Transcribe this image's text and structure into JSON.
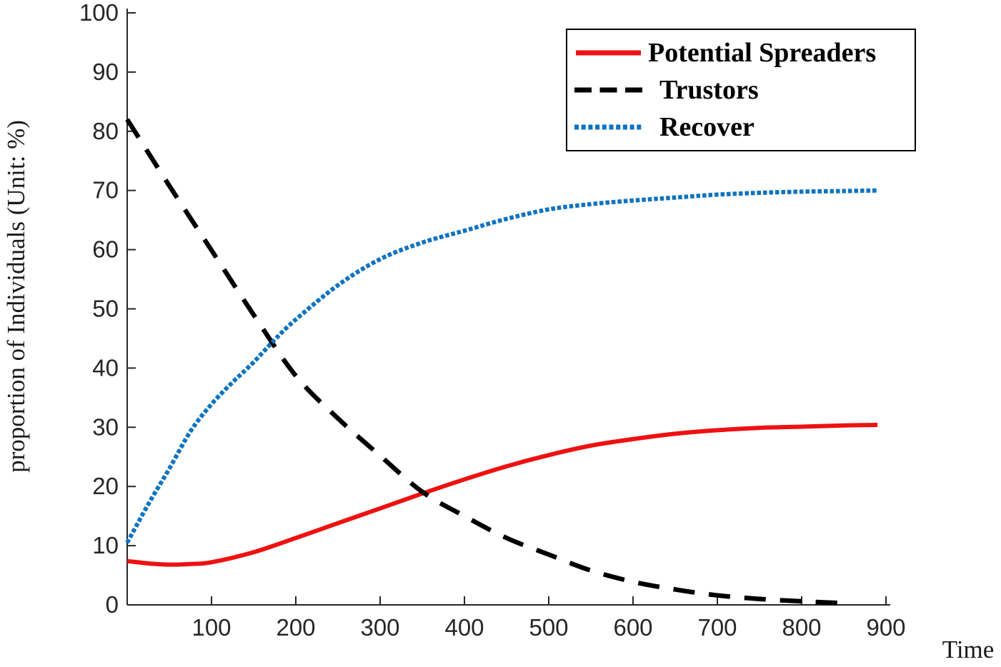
{
  "chart_data": {
    "type": "line",
    "title": "",
    "xlabel": "Time",
    "ylabel": "proportion of Individuals (Unit: %)",
    "xlim": [
      0,
      905
    ],
    "ylim": [
      0,
      100
    ],
    "x_ticks": [
      100,
      200,
      300,
      400,
      500,
      600,
      700,
      800,
      900
    ],
    "y_ticks": [
      0,
      10,
      20,
      30,
      40,
      50,
      60,
      70,
      80,
      90,
      100
    ],
    "grid": false,
    "legend_position": "top-right",
    "axis_color": "#262626",
    "series": [
      {
        "name": "Potential Spreaders",
        "color": "#ee1111",
        "style": "solid",
        "x": [
          0,
          25,
          50,
          75,
          100,
          150,
          200,
          250,
          300,
          350,
          400,
          450,
          500,
          550,
          600,
          650,
          700,
          750,
          800,
          850,
          890
        ],
        "y": [
          7.4,
          7.0,
          6.8,
          6.9,
          7.2,
          8.9,
          11.3,
          13.8,
          16.3,
          18.8,
          21.2,
          23.4,
          25.3,
          26.9,
          28.0,
          28.9,
          29.5,
          29.9,
          30.1,
          30.3,
          30.4
        ]
      },
      {
        "name": "Trustors",
        "color": "#000000",
        "style": "dashed",
        "x": [
          0,
          50,
          100,
          150,
          200,
          250,
          300,
          350,
          400,
          450,
          500,
          550,
          600,
          650,
          700,
          750,
          800,
          855
        ],
        "y": [
          82,
          70.8,
          59.9,
          49.0,
          38.7,
          31.5,
          25.2,
          19.1,
          15.0,
          11.3,
          8.5,
          5.8,
          3.9,
          2.6,
          1.6,
          1.0,
          0.6,
          0.25
        ]
      },
      {
        "name": "Recover",
        "color": "#0b72c2",
        "style": "dotted",
        "x": [
          0,
          25,
          50,
          75,
          100,
          125,
          150,
          175,
          200,
          250,
          300,
          350,
          400,
          450,
          500,
          550,
          600,
          650,
          700,
          750,
          800,
          850,
          890
        ],
        "y": [
          10.5,
          17.0,
          23.0,
          29.3,
          33.9,
          37.6,
          41.0,
          44.8,
          48.2,
          54.0,
          58.4,
          61.2,
          63.2,
          65.2,
          66.8,
          67.7,
          68.3,
          68.8,
          69.3,
          69.6,
          69.8,
          69.9,
          70.0
        ]
      }
    ]
  }
}
